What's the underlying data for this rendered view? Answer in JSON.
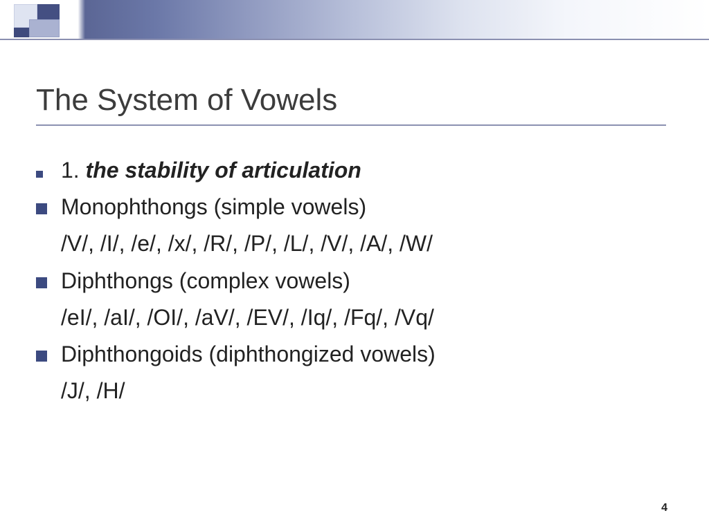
{
  "slide": {
    "title": "The System of Vowels",
    "page_number": "4",
    "colors": {
      "accent_dark": "#3c4a80",
      "underline": "#8b90b1",
      "text": "#222222",
      "title_text": "#3c3c3c",
      "background": "#ffffff"
    },
    "typography": {
      "title_size_pt": 44,
      "body_size_pt": 32,
      "font_family": "Arial"
    },
    "items": [
      {
        "bullet_style": "small",
        "heading_lead": "1",
        "heading_dot": ". ",
        "heading_italic": "the stability of articulation",
        "is_heading": true
      },
      {
        "bullet_style": "large",
        "label": "Monophthongs (simple vowels)",
        "phonemes": "/V/, /I/, /e/, /x/, /R/, /P/, /L/, /V/, /A/, /W/"
      },
      {
        "bullet_style": "large",
        "label": "Diphthongs (complex vowels)",
        "phonemes": "/eI/, /aI/, /OI/, /aV/, /EV/, /Iq/, /Fq/, /Vq/"
      },
      {
        "bullet_style": "large",
        "label": "Diphthongoids (diphthongized vowels)",
        "phonemes": "/J/, /H/"
      }
    ]
  }
}
